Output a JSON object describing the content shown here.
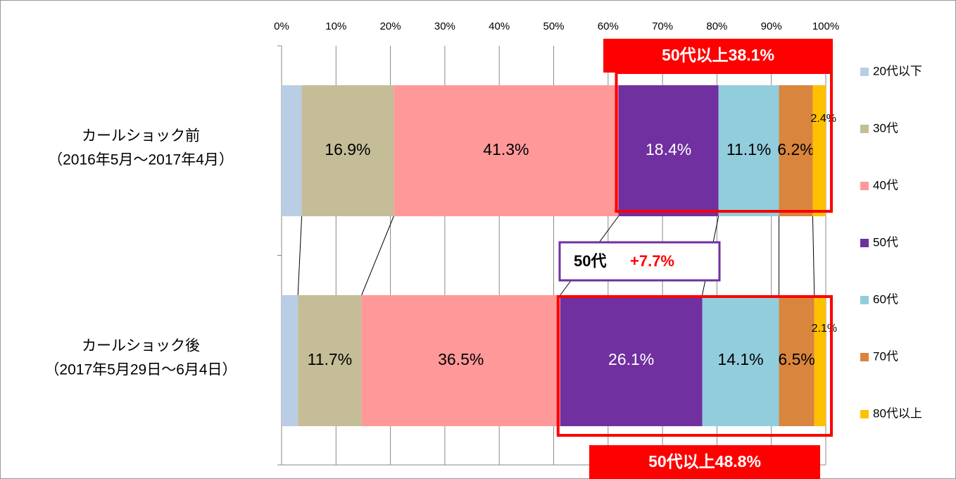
{
  "chart_data": {
    "type": "stacked_bar_100",
    "categories": [
      [
        "カールショック前",
        "（2016年5月～2017年4月）"
      ],
      [
        "カールショック後",
        "（2017年5月29日～6月4日）"
      ]
    ],
    "series": [
      {
        "name": "20代以下",
        "color": "#b9cde5",
        "values": [
          3.7,
          3.0
        ],
        "value_labels": [
          null,
          null
        ]
      },
      {
        "name": "30代",
        "color": "#c4bd97",
        "values": [
          16.9,
          11.7
        ],
        "value_labels": [
          "16.9%",
          "11.7%"
        ]
      },
      {
        "name": "40代",
        "color": "#ff9999",
        "values": [
          41.3,
          36.5
        ],
        "value_labels": [
          "41.3%",
          "36.5%"
        ]
      },
      {
        "name": "50代",
        "color": "#7030a0",
        "values": [
          18.4,
          26.1
        ],
        "value_labels": [
          "18.4%",
          "26.1%"
        ]
      },
      {
        "name": "60代",
        "color": "#92cddc",
        "values": [
          11.1,
          14.1
        ],
        "value_labels": [
          "11.1%",
          "14.1%"
        ]
      },
      {
        "name": "70代",
        "color": "#d9853d",
        "values": [
          6.2,
          6.5
        ],
        "value_labels": [
          "6.2%",
          "6.5%"
        ]
      },
      {
        "name": "80代以上",
        "color": "#ffc000",
        "values": [
          2.4,
          2.1
        ],
        "value_labels": [
          "2.4%",
          "2.1%"
        ]
      }
    ],
    "xlim": [
      0,
      100
    ],
    "xticks": [
      {
        "value": 0,
        "label": "0%"
      },
      {
        "value": 10,
        "label": "10%"
      },
      {
        "value": 20,
        "label": "20%"
      },
      {
        "value": 30,
        "label": "30%"
      },
      {
        "value": 40,
        "label": "40%"
      },
      {
        "value": 50,
        "label": "50%"
      },
      {
        "value": 60,
        "label": "60%"
      },
      {
        "value": 70,
        "label": "70%"
      },
      {
        "value": 80,
        "label": "80%"
      },
      {
        "value": 90,
        "label": "90%"
      },
      {
        "value": 100,
        "label": "100%"
      }
    ],
    "grid": true,
    "legend": "right",
    "annotations": [
      "50代以上38.1%",
      "50代以上48.8%",
      "50代",
      "+7.7%"
    ]
  }
}
